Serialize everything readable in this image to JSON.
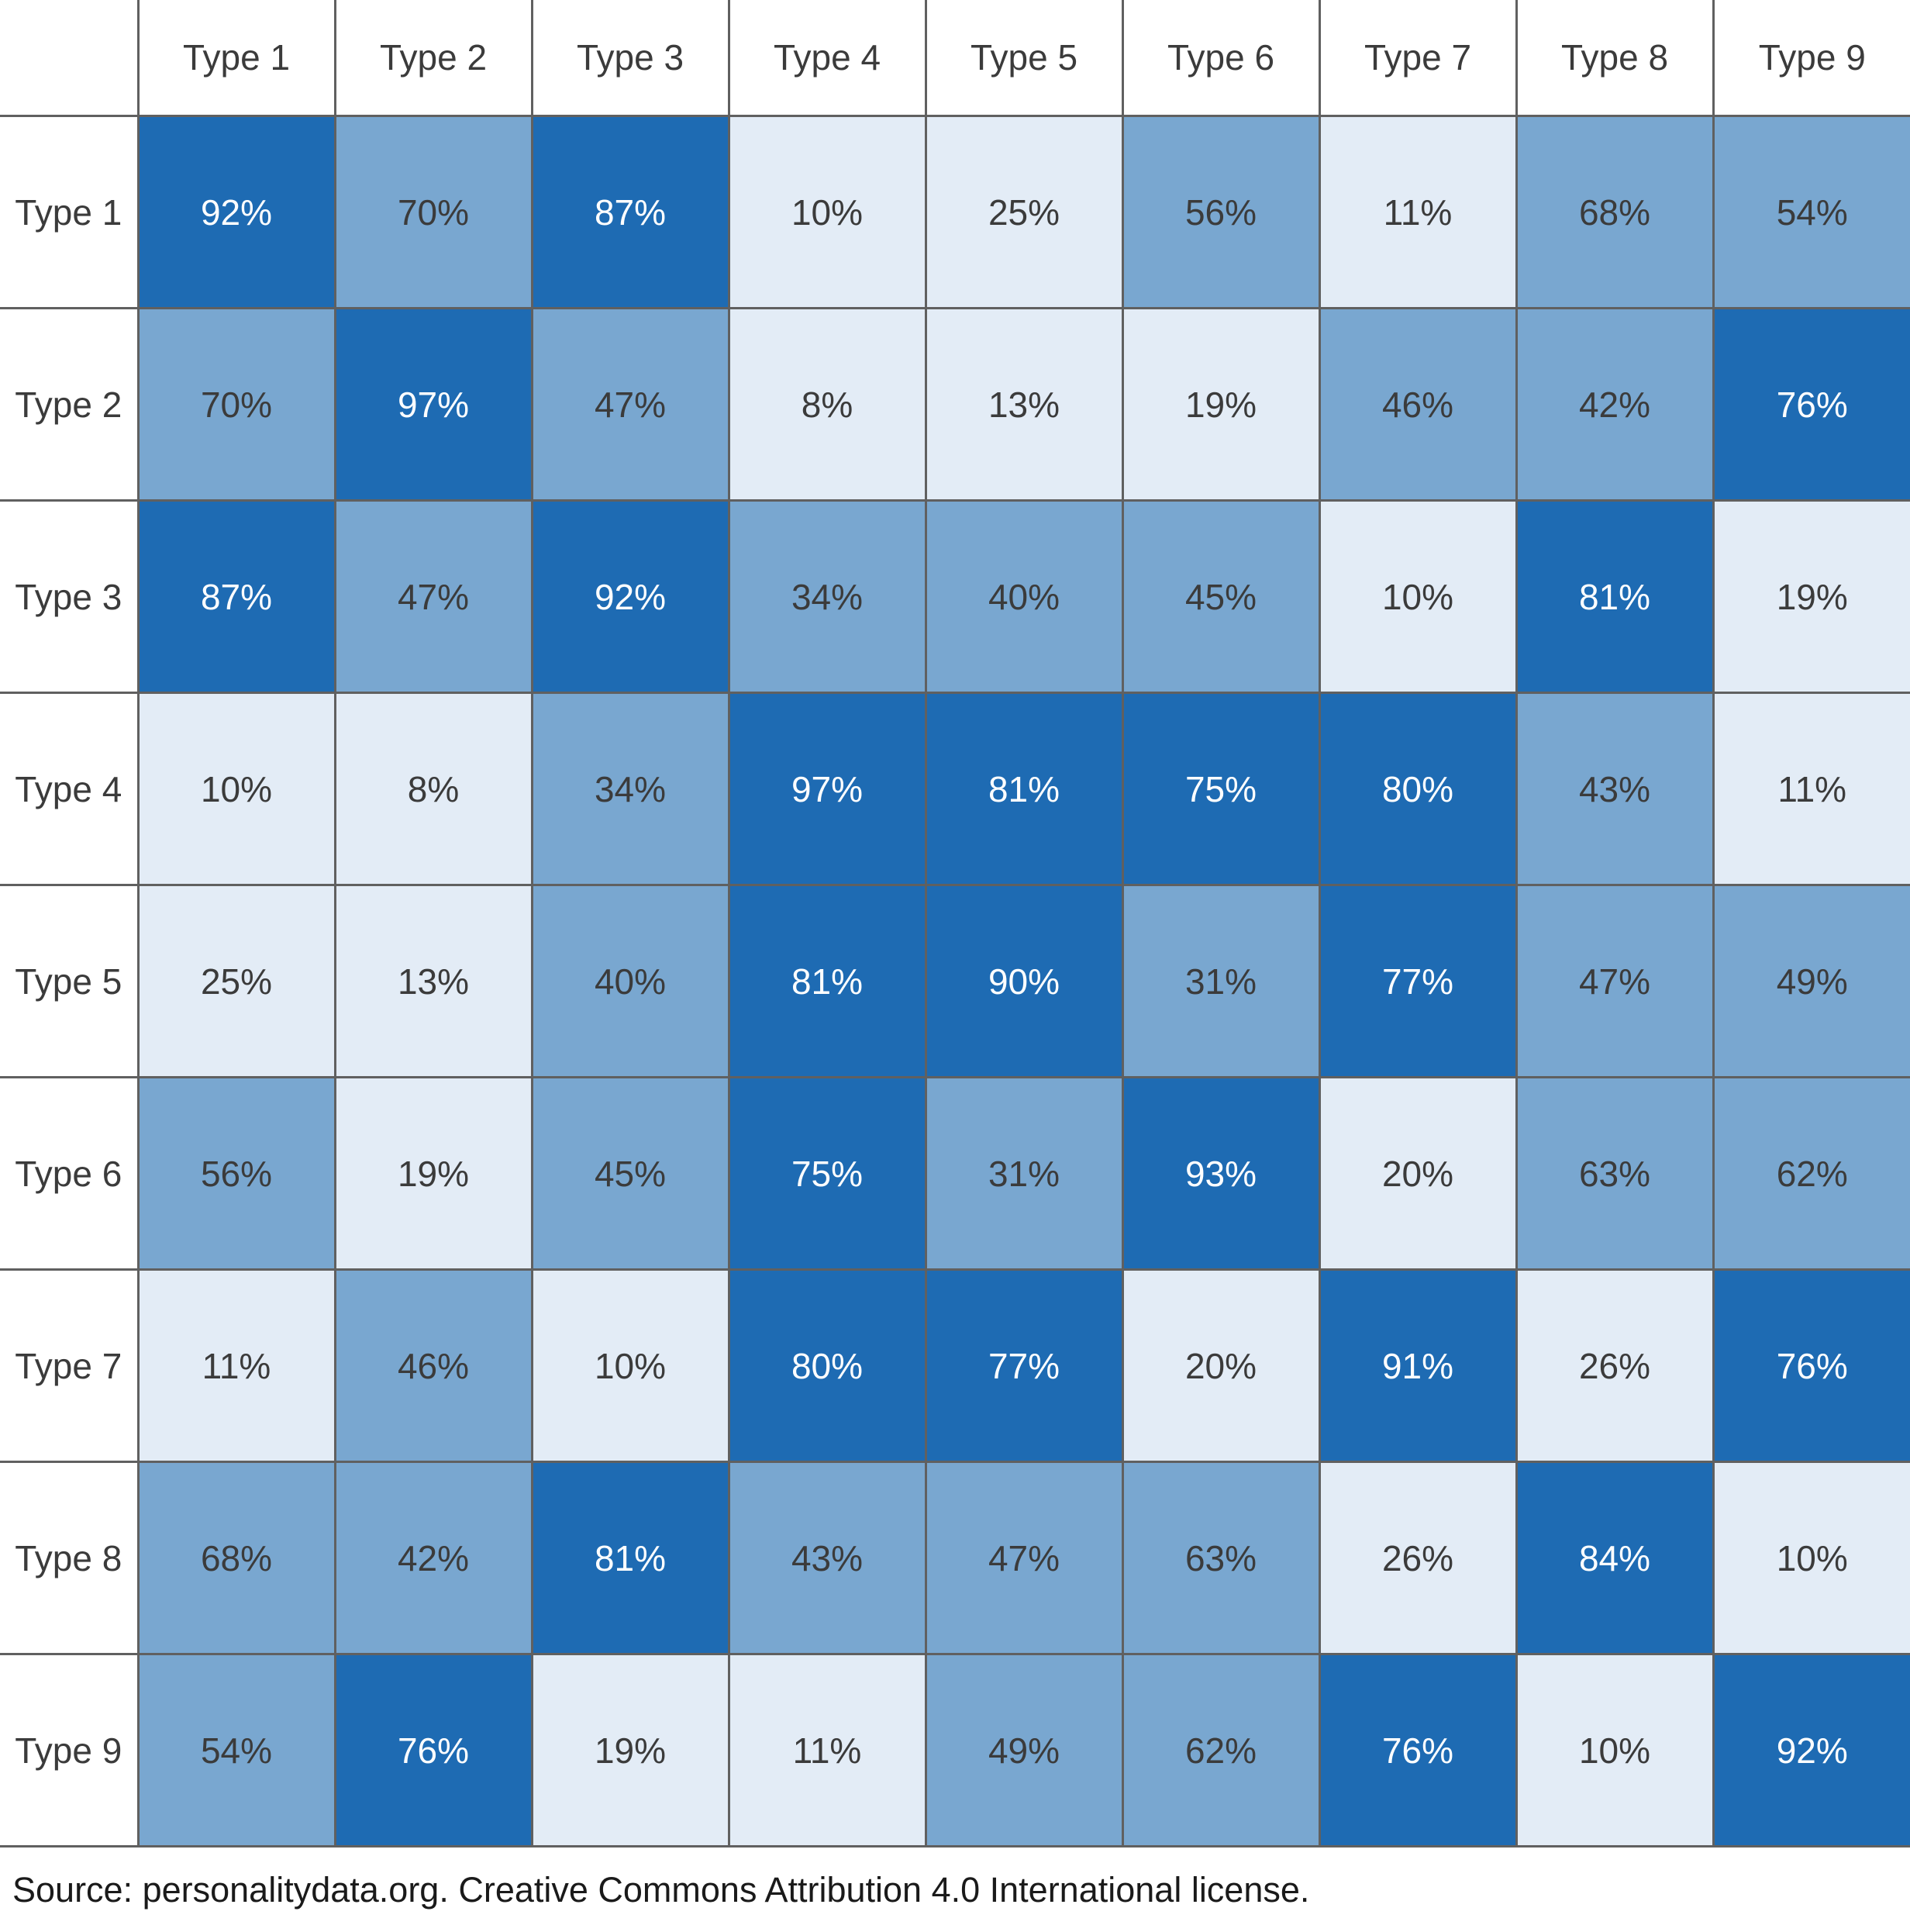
{
  "chart_data": {
    "type": "heatmap",
    "title": "",
    "categories": [
      "Type 1",
      "Type 2",
      "Type 3",
      "Type 4",
      "Type 5",
      "Type 6",
      "Type 7",
      "Type 8",
      "Type 9"
    ],
    "rows": [
      "Type 1",
      "Type 2",
      "Type 3",
      "Type 4",
      "Type 5",
      "Type 6",
      "Type 7",
      "Type 8",
      "Type 9"
    ],
    "matrix": [
      [
        92,
        70,
        87,
        10,
        25,
        56,
        11,
        68,
        54
      ],
      [
        70,
        97,
        47,
        8,
        13,
        19,
        46,
        42,
        76
      ],
      [
        87,
        47,
        92,
        34,
        40,
        45,
        10,
        81,
        19
      ],
      [
        10,
        8,
        34,
        97,
        81,
        75,
        80,
        43,
        11
      ],
      [
        25,
        13,
        40,
        81,
        90,
        31,
        77,
        47,
        49
      ],
      [
        56,
        19,
        45,
        75,
        31,
        93,
        20,
        63,
        62
      ],
      [
        11,
        46,
        10,
        80,
        77,
        20,
        91,
        26,
        76
      ],
      [
        68,
        42,
        81,
        43,
        47,
        63,
        26,
        84,
        10
      ],
      [
        54,
        76,
        19,
        11,
        49,
        62,
        76,
        10,
        92
      ]
    ],
    "value_suffix": "%",
    "legend": false,
    "grid": true,
    "color_scale": {
      "high": {
        "threshold": 75,
        "bg": "#1e6bb3",
        "text": "#ffffff"
      },
      "mid": {
        "threshold": 31,
        "bg": "#79a7d0",
        "text": "#3b3b3b"
      },
      "low": {
        "threshold": 0,
        "bg": "#e3ecf6",
        "text": "#3b3b3b"
      }
    },
    "header_text_color": "#3b3b3b",
    "border_color": "#606060"
  },
  "footer": {
    "source_text": "Source: personalitydata.org. Creative Commons Attribution 4.0 International license."
  }
}
